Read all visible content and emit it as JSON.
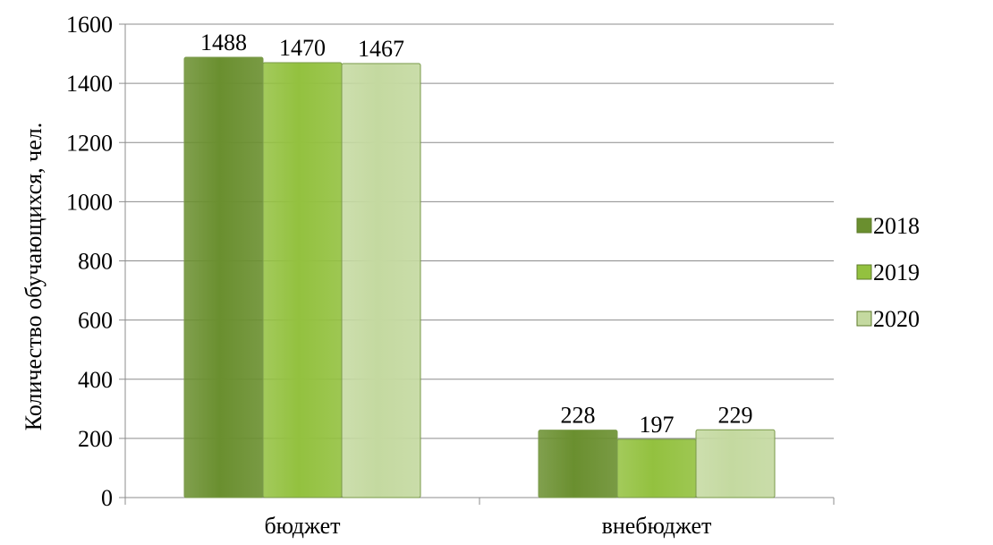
{
  "chart_data": {
    "type": "bar",
    "categories": [
      "бюджет",
      "внебюджет"
    ],
    "series": [
      {
        "name": "2018",
        "values": [
          1488,
          228
        ],
        "color": "#6a8f2f"
      },
      {
        "name": "2019",
        "values": [
          1470,
          197
        ],
        "color": "#93c13f"
      },
      {
        "name": "2020",
        "values": [
          1467,
          229
        ],
        "color": "#c4d9a0"
      }
    ],
    "title": "",
    "xlabel": "",
    "ylabel": "Количество обучающихся, чел.",
    "ylim": [
      0,
      1600
    ],
    "yticks": [
      0,
      200,
      400,
      600,
      800,
      1000,
      1200,
      1400,
      1600
    ],
    "grid": true,
    "legend_position": "right"
  }
}
